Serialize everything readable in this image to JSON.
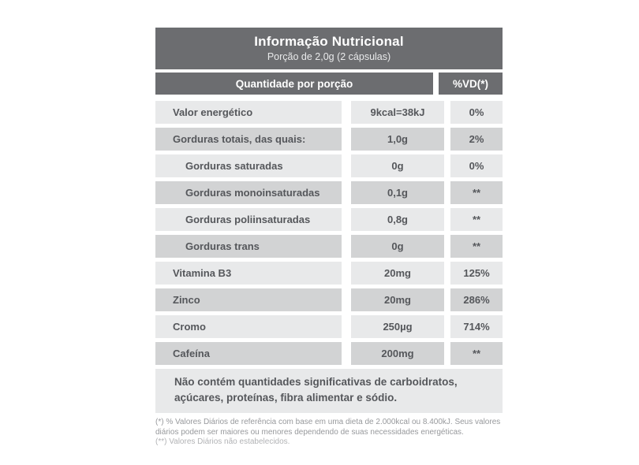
{
  "header": {
    "title": "Informação Nutricional",
    "subtitle": "Porção de 2,0g (2 cápsulas)"
  },
  "columns": {
    "amount": "Quantidade por porção",
    "dv": "%VD(*)"
  },
  "rows": [
    {
      "label": "Valor energético",
      "amount": "9kcal=38kJ",
      "dv": "0%"
    },
    {
      "label": "Gorduras totais, das quais:",
      "amount": "1,0g",
      "dv": "2%"
    },
    {
      "label": "Gorduras saturadas",
      "amount": "0g",
      "dv": "0%"
    },
    {
      "label": "Gorduras monoinsaturadas",
      "amount": "0,1g",
      "dv": "**"
    },
    {
      "label": "Gorduras poliinsaturadas",
      "amount": "0,8g",
      "dv": "**"
    },
    {
      "label": "Gorduras trans",
      "amount": "0g",
      "dv": "**"
    },
    {
      "label": "Vitamina B3",
      "amount": "20mg",
      "dv": "125%"
    },
    {
      "label": "Zinco",
      "amount": "20mg",
      "dv": "286%"
    },
    {
      "label": "Cromo",
      "amount": "250µg",
      "dv": "714%"
    },
    {
      "label": "Cafeína",
      "amount": "200mg",
      "dv": "**"
    }
  ],
  "note": "Não contém quantidades significativas de carboidratos, açúcares, proteínas, fibra alimentar e sódio.",
  "footnotes": {
    "dv_reference": "(*) % Valores Diários de referência com base em uma dieta de 2.000kcal ou 8.400kJ. Seus valores diários podem ser maiores ou menores dependendo de suas necessidades energéticas.",
    "dv_not_established": "(**) Valores Diários não estabelecidos."
  },
  "colors": {
    "header_bg": "#6c6d70",
    "row_light_bg": "#e8e9ea",
    "row_dark_bg": "#d2d3d4",
    "row_text": "#55575b",
    "header_text": "#ffffff",
    "footnote_text": "#97999c",
    "page_bg": "#ffffff"
  }
}
